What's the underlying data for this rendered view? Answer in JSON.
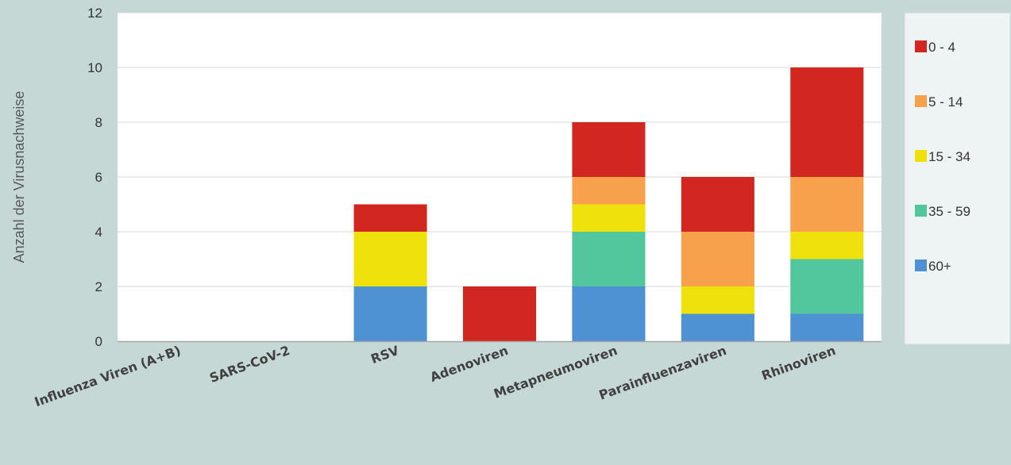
{
  "chart_data": {
    "type": "bar",
    "stacked": true,
    "ylabel": "Anzahl der Virusnachweise",
    "xlabel": "",
    "ylim": [
      0,
      12
    ],
    "yticks": [
      0,
      2,
      4,
      6,
      8,
      10,
      12
    ],
    "grid": true,
    "legend_position": "right",
    "categories": [
      "Influenza Viren (A+B)",
      "SARS-CoV-2",
      "RSV",
      "Adenoviren",
      "Metapneumoviren",
      "Parainfluenzaviren",
      "Rhinoviren"
    ],
    "series": [
      {
        "name": "60+",
        "color": "#4e92d4",
        "values": [
          0,
          0,
          2,
          0,
          2,
          1,
          1
        ]
      },
      {
        "name": "35 - 59",
        "color": "#52c79d",
        "values": [
          0,
          0,
          0,
          0,
          2,
          0,
          2
        ]
      },
      {
        "name": "15 - 34",
        "color": "#eee10c",
        "values": [
          0,
          0,
          2,
          0,
          1,
          1,
          1
        ]
      },
      {
        "name": "5 - 14",
        "color": "#f7a14c",
        "values": [
          0,
          0,
          0,
          0,
          1,
          2,
          2
        ]
      },
      {
        "name": "0 - 4",
        "color": "#d12720",
        "values": [
          0,
          0,
          1,
          2,
          2,
          2,
          4
        ]
      }
    ],
    "legend_order": [
      "0 - 4",
      "5 - 14",
      "15 - 34",
      "35 - 59",
      "60+"
    ]
  }
}
